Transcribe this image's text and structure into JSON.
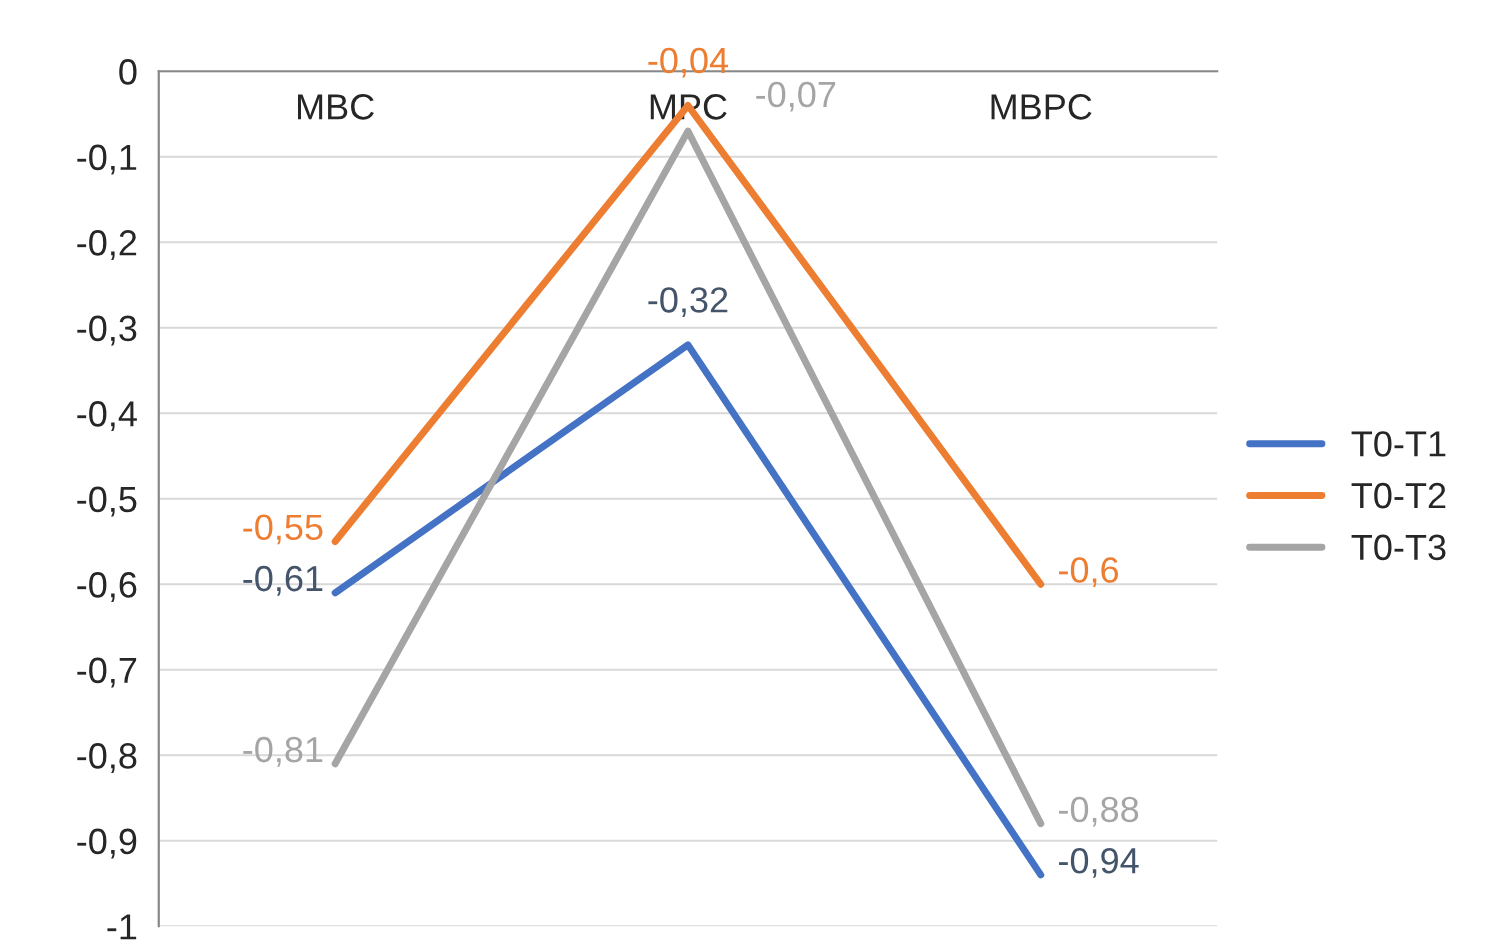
{
  "chart_data": {
    "type": "line",
    "categories": [
      "MBC",
      "MPC",
      "MBPC"
    ],
    "series": [
      {
        "name": "T0-T1",
        "color": "#4472c4",
        "values": [
          -0.61,
          -0.32,
          -0.94
        ],
        "value_labels": [
          "-0,61",
          "-0,32",
          "-0,94"
        ]
      },
      {
        "name": "T0-T2",
        "color": "#ed7d31",
        "values": [
          -0.55,
          -0.04,
          -0.6
        ],
        "value_labels": [
          "-0,55",
          "-0,04",
          "-0,6"
        ]
      },
      {
        "name": "T0-T3",
        "color": "#a5a5a5",
        "values": [
          -0.81,
          -0.07,
          -0.88
        ],
        "value_labels": [
          "-0,81",
          "-0,07",
          "-0,88"
        ]
      }
    ],
    "ylim": [
      -1,
      0
    ],
    "yticks": [
      {
        "value": -1,
        "label": "-1"
      },
      {
        "value": -0.9,
        "label": "-0,9"
      },
      {
        "value": -0.8,
        "label": "-0,8"
      },
      {
        "value": -0.7,
        "label": "-0,7"
      },
      {
        "value": -0.6,
        "label": "-0,6"
      },
      {
        "value": -0.5,
        "label": "-0,5"
      },
      {
        "value": -0.4,
        "label": "-0,4"
      },
      {
        "value": -0.3,
        "label": "-0,3"
      },
      {
        "value": -0.2,
        "label": "-0,2"
      },
      {
        "value": -0.1,
        "label": "-0,1"
      },
      {
        "value": 0,
        "label": "0"
      }
    ],
    "grid": "y",
    "legend": "right",
    "marker": "none",
    "line_style": "solid"
  }
}
